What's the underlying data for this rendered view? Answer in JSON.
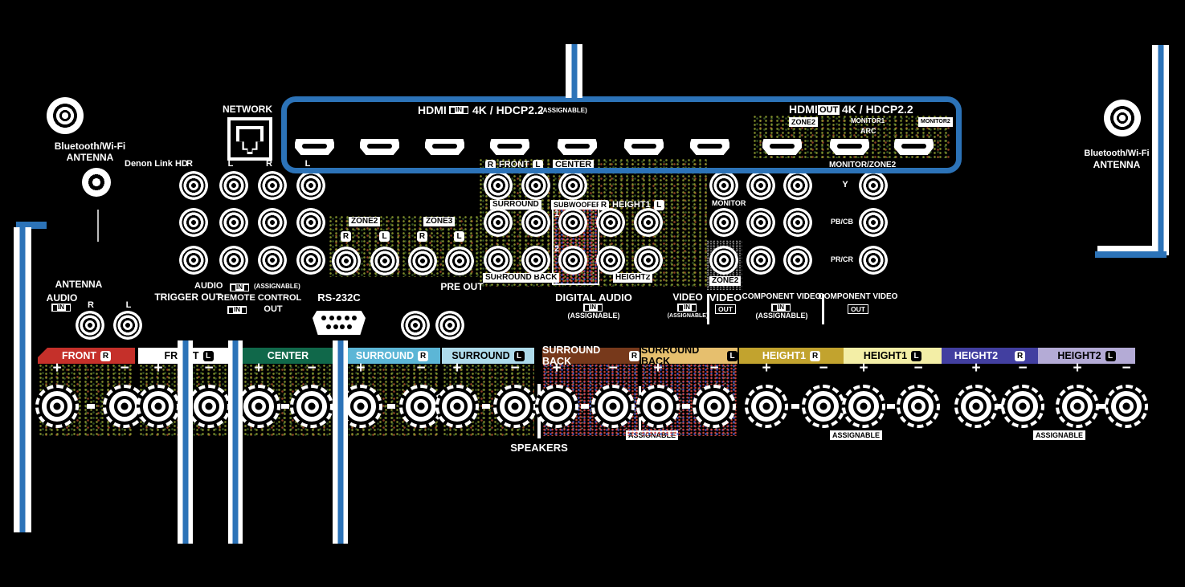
{
  "colors": {
    "accent_blue": "#2c73b8",
    "red": "#c5302a",
    "green": "#10684a"
  },
  "antenna_left": {
    "l1": "Bluetooth/Wi-Fi",
    "l2": "ANTENNA"
  },
  "antenna_right": {
    "l1": "Bluetooth/Wi-Fi",
    "l2": "ANTENNA"
  },
  "denon_link": "Denon Link HD",
  "network_label": "NETWORK",
  "hdmi": {
    "in_label": "HDMI",
    "in_badge": "IN",
    "in_spec": "4K / HDCP2.2",
    "in_note": "(ASSIGNABLE)",
    "out_label": "HDMI",
    "out_badge": "OUT",
    "out_spec": "4K / HDCP2.2",
    "out_zone2": "ZONE2",
    "out_monitor1": "MONITOR1",
    "out_arc": "ARC",
    "out_monitor2": "MONITOR2",
    "monitor_zone2": "MONITOR/ZONE2"
  },
  "audio_cols": [
    "R",
    "L",
    "R",
    "L"
  ],
  "zones": {
    "zone2": "ZONE2",
    "zone3": "ZONE3",
    "ch": [
      "R",
      "L",
      "R",
      "L"
    ]
  },
  "preout": {
    "front": {
      "r": "R",
      "name": "FRONT",
      "l": "L"
    },
    "center": "CENTER",
    "surround": "SURROUND",
    "subwoofer": "SUBWOOFER",
    "sub1": "1",
    "sub2": "2",
    "height1": {
      "r": "R",
      "name": "HEIGHT1",
      "l": "L"
    },
    "surround_back": "SURROUND BACK",
    "height2": "HEIGHT2",
    "label": "PRE OUT",
    "monitor": "MONITOR",
    "zone2": "ZONE2"
  },
  "component": {
    "y": "Y",
    "pb": "PB/CB",
    "pr": "PR/CR"
  },
  "bottom": {
    "antenna": "ANTENNA",
    "audio": "AUDIO",
    "in": "IN",
    "r": "R",
    "l": "L",
    "audio2": "AUDIO",
    "assignable": "(ASSIGNABLE)",
    "trigger": "TRIGGER OUT",
    "remote": "REMOTE CONTROL",
    "remote_in": "IN",
    "remote_out": "OUT",
    "rs232": "RS-232C",
    "digital_audio": "DIGITAL AUDIO",
    "da_in": "IN",
    "da_note": "(ASSIGNABLE)",
    "video_in": "VIDEO",
    "vi_badge": "IN",
    "vi_note": "(ASSIGNABLE)",
    "video_out": "VIDEO",
    "vo_badge": "OUT",
    "comp_in": "COMPONENT VIDEO",
    "ci_badge": "IN",
    "ci_note": "(ASSIGNABLE)",
    "comp_out": "COMPONENT VIDEO",
    "co_badge": "OUT"
  },
  "speakers": {
    "title": "SPEAKERS",
    "assignable": "ASSIGNABLE",
    "plus": "+",
    "minus": "−",
    "sections": [
      {
        "name": "FRONT",
        "ch": "R",
        "bg": "#c5302a",
        "fg": "#ffffff",
        "badge": "light"
      },
      {
        "name": "FRONT",
        "ch": "L",
        "bg": "#ffffff",
        "fg": "#000000",
        "badge": "dark"
      },
      {
        "name": "CENTER",
        "ch": "",
        "bg": "#10684a",
        "fg": "#ffffff",
        "badge": "light"
      },
      {
        "name": "SURROUND",
        "ch": "R",
        "bg": "#5cb6d6",
        "fg": "#ffffff",
        "badge": "light"
      },
      {
        "name": "SURROUND",
        "ch": "L",
        "bg": "#aedbeb",
        "fg": "#000000",
        "badge": "dark"
      },
      {
        "name": "SURROUND BACK",
        "ch": "R",
        "bg": "#77391b",
        "fg": "#ffffff",
        "badge": "light"
      },
      {
        "name": "SURROUND BACK",
        "ch": "L",
        "bg": "#e6bf6e",
        "fg": "#000000",
        "badge": "dark"
      },
      {
        "name": "HEIGHT1",
        "ch": "R",
        "bg": "#c2a32e",
        "fg": "#ffffff",
        "badge": "light"
      },
      {
        "name": "HEIGHT1",
        "ch": "L",
        "bg": "#f3eea6",
        "fg": "#000000",
        "badge": "dark"
      },
      {
        "name": "HEIGHT2",
        "ch": "R",
        "bg": "#423fa0",
        "fg": "#ffffff",
        "badge": "light",
        "gap": true
      },
      {
        "name": "HEIGHT2",
        "ch": "L",
        "bg": "#b4abd6",
        "fg": "#000000",
        "badge": "dark"
      }
    ]
  }
}
